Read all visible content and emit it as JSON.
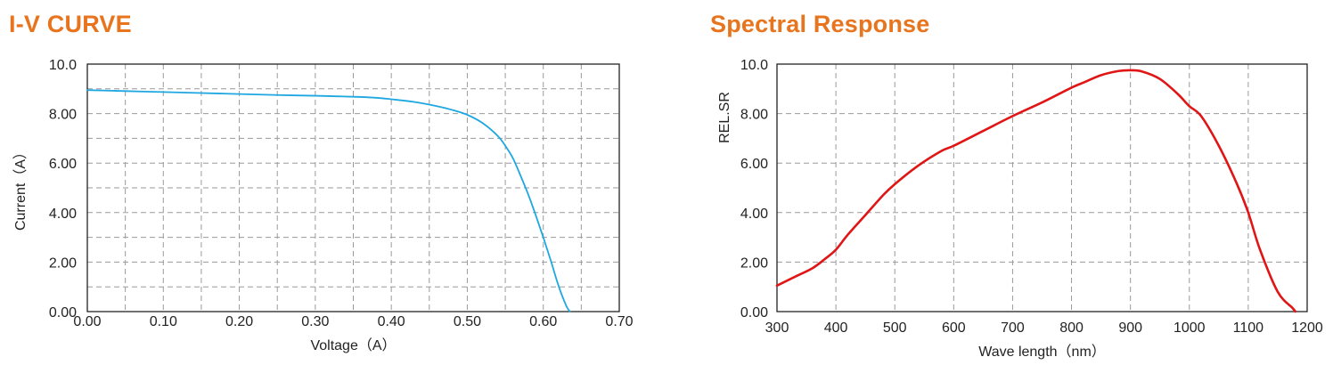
{
  "chart_data": [
    {
      "type": "line",
      "title": "I-V CURVE",
      "xlabel": "Voltage（A）",
      "ylabel": "Current（A）",
      "xlim": [
        0,
        0.7
      ],
      "ylim": [
        0,
        10
      ],
      "x_ticks": [
        "0.00",
        "0.10",
        "0.20",
        "0.30",
        "0.40",
        "0.50",
        "0.60",
        "0.70"
      ],
      "y_ticks": [
        "0.00",
        "2.00",
        "4.00",
        "6.00",
        "8.00",
        "10.0"
      ],
      "grid": "dashed, minor every 0.05 / 1.0",
      "color": "#1ea7e1",
      "series": [
        {
          "x": [
            0.0,
            0.05,
            0.1,
            0.15,
            0.2,
            0.25,
            0.3,
            0.35,
            0.38,
            0.4,
            0.43,
            0.46,
            0.48,
            0.5,
            0.52,
            0.54,
            0.55,
            0.56,
            0.57,
            0.58,
            0.59,
            0.6,
            0.61,
            0.62,
            0.63,
            0.635
          ],
          "y": [
            8.95,
            8.91,
            8.87,
            8.83,
            8.79,
            8.75,
            8.72,
            8.68,
            8.64,
            8.58,
            8.47,
            8.3,
            8.15,
            7.95,
            7.62,
            7.1,
            6.7,
            6.2,
            5.5,
            4.75,
            3.9,
            3.0,
            2.05,
            1.05,
            0.25,
            0.0
          ]
        }
      ]
    },
    {
      "type": "line",
      "title": "Spectral Response",
      "xlabel": "Wave length（nm）",
      "ylabel": "REL.SR",
      "xlim": [
        300,
        1200
      ],
      "ylim": [
        0,
        10
      ],
      "x_ticks": [
        "300",
        "400",
        "500",
        "600",
        "700",
        "800",
        "900",
        "1000",
        "1100",
        "1200"
      ],
      "y_ticks": [
        "0.00",
        "2.00",
        "4.00",
        "6.00",
        "8.00",
        "10.0"
      ],
      "grid": "dashed",
      "color": "#e01515",
      "series": [
        {
          "x": [
            300,
            330,
            360,
            380,
            400,
            420,
            450,
            480,
            500,
            540,
            580,
            600,
            650,
            700,
            750,
            800,
            820,
            850,
            880,
            900,
            920,
            950,
            980,
            1000,
            1020,
            1050,
            1080,
            1100,
            1120,
            1150,
            1175,
            1180
          ],
          "y": [
            1.05,
            1.4,
            1.75,
            2.1,
            2.5,
            3.1,
            3.9,
            4.7,
            5.15,
            5.9,
            6.5,
            6.7,
            7.3,
            7.9,
            8.45,
            9.05,
            9.25,
            9.55,
            9.72,
            9.75,
            9.7,
            9.4,
            8.8,
            8.3,
            7.9,
            6.7,
            5.2,
            4.0,
            2.5,
            0.8,
            0.15,
            0.0
          ]
        }
      ]
    }
  ]
}
